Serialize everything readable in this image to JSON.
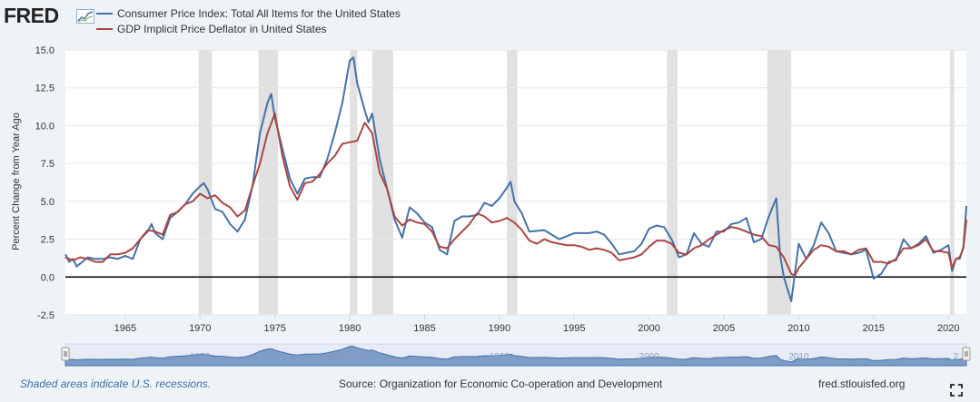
{
  "header": {
    "logo_text": "FRED",
    "logo_icon": "fred-chart-mini-icon"
  },
  "legend": {
    "items": [
      {
        "label": "Consumer Price Index: Total All Items for the United States",
        "color": "#4572a7"
      },
      {
        "label": "GDP Implicit Price Deflator in United States",
        "color": "#aa4643"
      }
    ]
  },
  "footer": {
    "recession_note": "Shaded areas indicate U.S. recessions.",
    "source": "Source: Organization for Economic Co-operation and Development",
    "site": "fred.stlouisfed.org"
  },
  "navigator": {
    "labels": [
      "1970",
      "1980",
      "1990",
      "2000",
      "2010",
      "2"
    ]
  },
  "chart_data": {
    "type": "line",
    "ylabel": "Percent Change from Year Ago",
    "xlim": [
      1961,
      2021.2
    ],
    "ylim": [
      -2.5,
      15
    ],
    "x_ticks": [
      1965,
      1970,
      1975,
      1980,
      1985,
      1990,
      1995,
      2000,
      2005,
      2010,
      2015,
      2020
    ],
    "y_ticks": [
      "-2.5",
      "0.0",
      "2.5",
      "5.0",
      "7.5",
      "10.0",
      "12.5",
      "15.0"
    ],
    "grid": "horizontal",
    "recessions": [
      [
        1969.9,
        1970.8
      ],
      [
        1973.9,
        1975.2
      ],
      [
        1980.0,
        1980.5
      ],
      [
        1981.5,
        1982.9
      ],
      [
        1990.5,
        1991.2
      ],
      [
        2001.2,
        2001.9
      ],
      [
        2007.9,
        2009.5
      ],
      [
        2020.1,
        2020.4
      ]
    ],
    "series": [
      {
        "name": "Consumer Price Index: Total All Items for the United States",
        "color": "#4572a7",
        "points": [
          [
            1961.0,
            1.5
          ],
          [
            1961.25,
            1.0
          ],
          [
            1961.5,
            1.2
          ],
          [
            1961.75,
            0.7
          ],
          [
            1962.0,
            0.9
          ],
          [
            1962.5,
            1.3
          ],
          [
            1963.0,
            1.2
          ],
          [
            1963.5,
            1.2
          ],
          [
            1964.0,
            1.3
          ],
          [
            1964.5,
            1.2
          ],
          [
            1965.0,
            1.4
          ],
          [
            1965.5,
            1.2
          ],
          [
            1966.0,
            2.5
          ],
          [
            1966.5,
            3.0
          ],
          [
            1966.75,
            3.5
          ],
          [
            1967.0,
            2.9
          ],
          [
            1967.5,
            2.5
          ],
          [
            1968.0,
            3.9
          ],
          [
            1968.5,
            4.3
          ],
          [
            1969.0,
            4.8
          ],
          [
            1969.5,
            5.5
          ],
          [
            1970.0,
            6.0
          ],
          [
            1970.25,
            6.2
          ],
          [
            1970.5,
            5.8
          ],
          [
            1971.0,
            4.5
          ],
          [
            1971.5,
            4.3
          ],
          [
            1972.0,
            3.5
          ],
          [
            1972.5,
            3.0
          ],
          [
            1973.0,
            3.8
          ],
          [
            1973.5,
            6.0
          ],
          [
            1974.0,
            9.5
          ],
          [
            1974.5,
            11.5
          ],
          [
            1974.75,
            12.1
          ],
          [
            1975.0,
            10.5
          ],
          [
            1975.5,
            8.5
          ],
          [
            1976.0,
            6.5
          ],
          [
            1976.5,
            5.5
          ],
          [
            1977.0,
            6.5
          ],
          [
            1977.5,
            6.6
          ],
          [
            1978.0,
            6.6
          ],
          [
            1978.5,
            7.8
          ],
          [
            1979.0,
            9.5
          ],
          [
            1979.5,
            11.5
          ],
          [
            1980.0,
            14.3
          ],
          [
            1980.25,
            14.5
          ],
          [
            1980.5,
            12.8
          ],
          [
            1981.0,
            11.0
          ],
          [
            1981.25,
            10.2
          ],
          [
            1981.5,
            10.8
          ],
          [
            1982.0,
            7.8
          ],
          [
            1982.5,
            5.8
          ],
          [
            1983.0,
            3.8
          ],
          [
            1983.5,
            2.6
          ],
          [
            1984.0,
            4.6
          ],
          [
            1984.5,
            4.2
          ],
          [
            1985.0,
            3.6
          ],
          [
            1985.5,
            3.3
          ],
          [
            1986.0,
            1.8
          ],
          [
            1986.5,
            1.5
          ],
          [
            1987.0,
            3.7
          ],
          [
            1987.5,
            4.0
          ],
          [
            1988.0,
            4.0
          ],
          [
            1988.5,
            4.1
          ],
          [
            1989.0,
            4.9
          ],
          [
            1989.5,
            4.7
          ],
          [
            1990.0,
            5.2
          ],
          [
            1990.5,
            5.9
          ],
          [
            1990.75,
            6.3
          ],
          [
            1991.0,
            5.0
          ],
          [
            1991.5,
            4.2
          ],
          [
            1992.0,
            3.0
          ],
          [
            1993.0,
            3.1
          ],
          [
            1994.0,
            2.5
          ],
          [
            1995.0,
            2.9
          ],
          [
            1996.0,
            2.9
          ],
          [
            1996.5,
            3.0
          ],
          [
            1997.0,
            2.8
          ],
          [
            1997.5,
            2.2
          ],
          [
            1998.0,
            1.5
          ],
          [
            1999.0,
            1.7
          ],
          [
            1999.5,
            2.2
          ],
          [
            2000.0,
            3.2
          ],
          [
            2000.5,
            3.4
          ],
          [
            2001.0,
            3.3
          ],
          [
            2001.5,
            2.5
          ],
          [
            2002.0,
            1.3
          ],
          [
            2002.5,
            1.5
          ],
          [
            2003.0,
            2.9
          ],
          [
            2003.5,
            2.2
          ],
          [
            2004.0,
            2.0
          ],
          [
            2004.5,
            3.0
          ],
          [
            2005.0,
            3.0
          ],
          [
            2005.5,
            3.5
          ],
          [
            2006.0,
            3.6
          ],
          [
            2006.5,
            3.9
          ],
          [
            2007.0,
            2.3
          ],
          [
            2007.5,
            2.5
          ],
          [
            2008.0,
            4.0
          ],
          [
            2008.5,
            5.2
          ],
          [
            2008.75,
            1.5
          ],
          [
            2009.0,
            0.0
          ],
          [
            2009.5,
            -1.6
          ],
          [
            2010.0,
            2.2
          ],
          [
            2010.5,
            1.2
          ],
          [
            2011.0,
            2.1
          ],
          [
            2011.5,
            3.6
          ],
          [
            2012.0,
            2.9
          ],
          [
            2012.5,
            1.7
          ],
          [
            2013.0,
            1.6
          ],
          [
            2013.5,
            1.5
          ],
          [
            2014.0,
            1.6
          ],
          [
            2014.5,
            1.8
          ],
          [
            2015.0,
            -0.1
          ],
          [
            2015.5,
            0.2
          ],
          [
            2016.0,
            1.0
          ],
          [
            2016.5,
            1.1
          ],
          [
            2017.0,
            2.5
          ],
          [
            2017.5,
            1.9
          ],
          [
            2018.0,
            2.2
          ],
          [
            2018.5,
            2.7
          ],
          [
            2019.0,
            1.6
          ],
          [
            2019.5,
            1.8
          ],
          [
            2020.0,
            2.1
          ],
          [
            2020.25,
            0.4
          ],
          [
            2020.5,
            1.2
          ],
          [
            2020.75,
            1.2
          ],
          [
            2021.0,
            2.0
          ],
          [
            2021.2,
            4.7
          ]
        ]
      },
      {
        "name": "GDP Implicit Price Deflator in United States",
        "color": "#aa4643",
        "points": [
          [
            1961.0,
            1.3
          ],
          [
            1961.5,
            1.1
          ],
          [
            1962.0,
            1.3
          ],
          [
            1962.5,
            1.2
          ],
          [
            1963.0,
            1.0
          ],
          [
            1963.5,
            1.0
          ],
          [
            1964.0,
            1.5
          ],
          [
            1964.5,
            1.5
          ],
          [
            1965.0,
            1.6
          ],
          [
            1965.5,
            1.9
          ],
          [
            1966.0,
            2.5
          ],
          [
            1966.5,
            3.1
          ],
          [
            1967.0,
            3.0
          ],
          [
            1967.5,
            2.8
          ],
          [
            1968.0,
            4.1
          ],
          [
            1968.5,
            4.3
          ],
          [
            1969.0,
            4.8
          ],
          [
            1969.5,
            5.0
          ],
          [
            1970.0,
            5.5
          ],
          [
            1970.5,
            5.2
          ],
          [
            1971.0,
            5.4
          ],
          [
            1971.5,
            4.9
          ],
          [
            1972.0,
            4.6
          ],
          [
            1972.5,
            4.0
          ],
          [
            1973.0,
            4.4
          ],
          [
            1973.5,
            6.0
          ],
          [
            1974.0,
            7.5
          ],
          [
            1974.5,
            9.5
          ],
          [
            1975.0,
            10.8
          ],
          [
            1975.5,
            8.0
          ],
          [
            1976.0,
            6.0
          ],
          [
            1976.5,
            5.1
          ],
          [
            1977.0,
            6.2
          ],
          [
            1977.5,
            6.3
          ],
          [
            1978.0,
            6.8
          ],
          [
            1978.5,
            7.5
          ],
          [
            1979.0,
            8.0
          ],
          [
            1979.5,
            8.8
          ],
          [
            1980.0,
            8.9
          ],
          [
            1980.5,
            9.0
          ],
          [
            1981.0,
            10.2
          ],
          [
            1981.5,
            9.5
          ],
          [
            1982.0,
            6.9
          ],
          [
            1982.5,
            5.8
          ],
          [
            1983.0,
            4.0
          ],
          [
            1983.5,
            3.4
          ],
          [
            1984.0,
            3.8
          ],
          [
            1984.5,
            3.6
          ],
          [
            1985.0,
            3.5
          ],
          [
            1985.5,
            3.0
          ],
          [
            1986.0,
            2.0
          ],
          [
            1986.5,
            1.9
          ],
          [
            1987.0,
            2.5
          ],
          [
            1987.5,
            3.0
          ],
          [
            1988.0,
            3.5
          ],
          [
            1988.5,
            4.2
          ],
          [
            1989.0,
            4.0
          ],
          [
            1989.5,
            3.6
          ],
          [
            1990.0,
            3.7
          ],
          [
            1990.5,
            3.9
          ],
          [
            1991.0,
            3.6
          ],
          [
            1991.5,
            3.1
          ],
          [
            1992.0,
            2.4
          ],
          [
            1992.5,
            2.2
          ],
          [
            1993.0,
            2.5
          ],
          [
            1993.5,
            2.3
          ],
          [
            1994.0,
            2.2
          ],
          [
            1994.5,
            2.1
          ],
          [
            1995.0,
            2.1
          ],
          [
            1995.5,
            2.0
          ],
          [
            1996.0,
            1.8
          ],
          [
            1996.5,
            1.9
          ],
          [
            1997.0,
            1.8
          ],
          [
            1997.5,
            1.6
          ],
          [
            1998.0,
            1.1
          ],
          [
            1998.5,
            1.2
          ],
          [
            1999.0,
            1.3
          ],
          [
            1999.5,
            1.5
          ],
          [
            2000.0,
            2.0
          ],
          [
            2000.5,
            2.4
          ],
          [
            2001.0,
            2.4
          ],
          [
            2001.5,
            2.2
          ],
          [
            2002.0,
            1.6
          ],
          [
            2002.5,
            1.5
          ],
          [
            2003.0,
            1.9
          ],
          [
            2003.5,
            2.1
          ],
          [
            2004.0,
            2.5
          ],
          [
            2004.5,
            2.8
          ],
          [
            2005.0,
            3.1
          ],
          [
            2005.5,
            3.3
          ],
          [
            2006.0,
            3.2
          ],
          [
            2006.5,
            3.0
          ],
          [
            2007.0,
            2.8
          ],
          [
            2007.5,
            2.7
          ],
          [
            2008.0,
            2.1
          ],
          [
            2008.5,
            2.0
          ],
          [
            2009.0,
            1.3
          ],
          [
            2009.5,
            0.2
          ],
          [
            2009.75,
            0.1
          ],
          [
            2010.0,
            0.6
          ],
          [
            2010.5,
            1.2
          ],
          [
            2011.0,
            1.8
          ],
          [
            2011.5,
            2.1
          ],
          [
            2012.0,
            2.0
          ],
          [
            2012.5,
            1.7
          ],
          [
            2013.0,
            1.7
          ],
          [
            2013.5,
            1.5
          ],
          [
            2014.0,
            1.8
          ],
          [
            2014.5,
            1.9
          ],
          [
            2015.0,
            1.0
          ],
          [
            2015.5,
            1.0
          ],
          [
            2016.0,
            0.9
          ],
          [
            2016.5,
            1.2
          ],
          [
            2017.0,
            1.9
          ],
          [
            2017.5,
            1.9
          ],
          [
            2018.0,
            2.1
          ],
          [
            2018.5,
            2.5
          ],
          [
            2019.0,
            1.7
          ],
          [
            2019.5,
            1.7
          ],
          [
            2020.0,
            1.6
          ],
          [
            2020.25,
            0.6
          ],
          [
            2020.5,
            1.2
          ],
          [
            2020.75,
            1.3
          ],
          [
            2021.0,
            1.9
          ],
          [
            2021.2,
            3.8
          ]
        ]
      }
    ]
  }
}
